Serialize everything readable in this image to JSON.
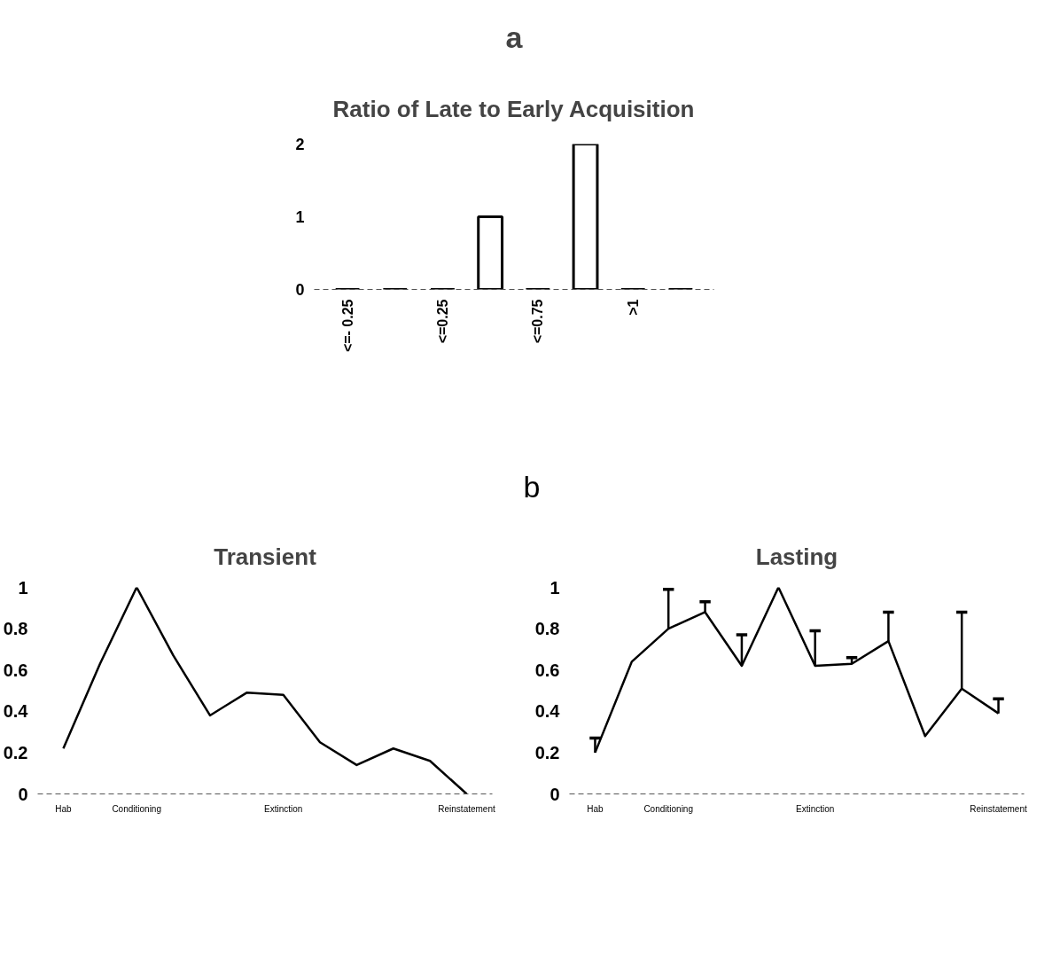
{
  "chart_data": [
    {
      "type": "bar",
      "title": "Ratio of Late to Early Acquisition",
      "annotations": [
        "a"
      ],
      "categories": [
        "<=- 0.25",
        null,
        "<=0.25",
        null,
        "<=0.75",
        null,
        ">1",
        null
      ],
      "values": [
        0,
        0,
        0,
        1,
        0,
        2,
        0,
        0
      ],
      "color": "#000000",
      "ylim": [
        0,
        2
      ],
      "yticks": [
        0,
        1,
        2
      ],
      "grid": false
    },
    {
      "type": "line",
      "title": "Transient",
      "annotations": [
        "b"
      ],
      "categories": [
        "Hab",
        null,
        "Conditioning",
        null,
        null,
        null,
        "Extinction",
        null,
        null,
        null,
        null,
        "Reinstatement"
      ],
      "series": [
        {
          "color": "#000000",
          "values": [
            0.22,
            0.63,
            1.0,
            0.67,
            0.38,
            0.49,
            0.48,
            0.25,
            0.14,
            0.22,
            0.16,
            0
          ]
        }
      ],
      "ylim": [
        0,
        1
      ],
      "yticks": [
        0,
        0.2,
        0.4,
        0.6,
        0.8,
        1
      ],
      "grid": false,
      "marker": "none",
      "line_style": "solid"
    },
    {
      "type": "line",
      "title": "Lasting",
      "categories": [
        "Hab",
        null,
        "Conditioning",
        null,
        null,
        null,
        "Extinction",
        null,
        null,
        null,
        null,
        "Reinstatement"
      ],
      "series": [
        {
          "color": "#000000",
          "values": [
            0.2,
            0.64,
            0.8,
            0.88,
            0.62,
            1.0,
            0.62,
            0.63,
            0.74,
            0.28,
            0.51,
            0.39
          ],
          "errors": [
            [
              0.2,
              0.27
            ],
            null,
            [
              0.8,
              0.99
            ],
            [
              0.88,
              0.93
            ],
            [
              0.62,
              0.77
            ],
            null,
            [
              0.62,
              0.79
            ],
            [
              0.63,
              0.66
            ],
            [
              0.74,
              0.88
            ],
            null,
            [
              0.51,
              0.88
            ],
            [
              0.39,
              0.46
            ]
          ]
        }
      ],
      "ylim": [
        0,
        1
      ],
      "yticks": [
        0,
        0.2,
        0.4,
        0.6,
        0.8,
        1
      ],
      "grid": false,
      "marker": "none",
      "line_style": "solid"
    }
  ]
}
